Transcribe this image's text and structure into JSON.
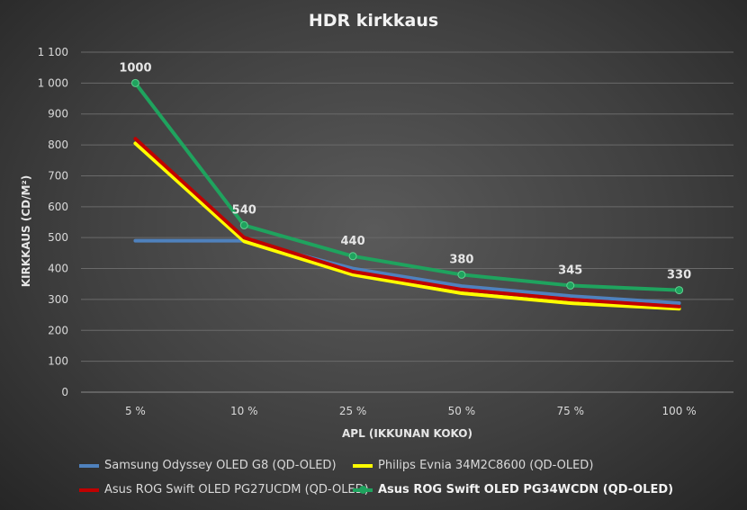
{
  "chart_data": {
    "type": "line",
    "title": "HDR kirkkaus",
    "xlabel": "APL (IKKUNAN KOKO)",
    "ylabel": "KIRKKAUS (CD/M²)",
    "ylim": [
      0,
      1100
    ],
    "yticks": [
      0,
      100,
      200,
      300,
      400,
      500,
      600,
      700,
      800,
      900,
      1000,
      1100
    ],
    "ytick_labels": [
      "0",
      "100",
      "200",
      "300",
      "400",
      "500",
      "600",
      "700",
      "800",
      "900",
      "1 000",
      "1 100"
    ],
    "grid": true,
    "legend_position": "bottom",
    "categories": [
      "5 %",
      "10 %",
      "25 %",
      "50 %",
      "75 %",
      "100 %"
    ],
    "series": [
      {
        "name": "Samsung Odyssey OLED G8 (QD-OLED)",
        "color": "#4f81bd",
        "values": [
          490,
          490,
          400,
          343,
          311,
          288
        ],
        "labels": false,
        "markers": false,
        "bold": false
      },
      {
        "name": "Philips Evnia 34M2C8600 (QD-OLED)",
        "color": "#ffff00",
        "values": [
          805,
          488,
          380,
          320,
          288,
          270
        ],
        "labels": false,
        "markers": false,
        "bold": false
      },
      {
        "name": "Asus ROG Swift OLED PG27UCDM (QD-OLED)",
        "color": "#c00000",
        "values": [
          820,
          500,
          390,
          332,
          300,
          277
        ],
        "labels": false,
        "markers": false,
        "bold": false
      },
      {
        "name": "Asus ROG Swift OLED PG34WCDN (QD-OLED)",
        "color": "#1fa35e",
        "values": [
          1000,
          540,
          440,
          380,
          345,
          330
        ],
        "data_labels": [
          "1000",
          "540",
          "440",
          "380",
          "345",
          "330"
        ],
        "labels": true,
        "markers": true,
        "bold": true
      }
    ]
  }
}
